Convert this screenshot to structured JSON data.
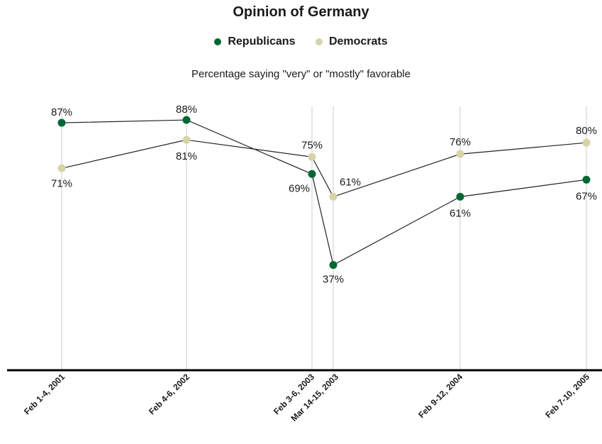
{
  "chart_data": {
    "type": "line",
    "title": "Opinion of Germany",
    "subtitle": "Percentage saying \"very\" or \"mostly\" favorable",
    "categories": [
      "Feb 1-4, 2001",
      "Feb 4-6, 2002",
      "Feb 3-6, 2003",
      "Mar 14-15, 2003",
      "Feb 9-12, 2004",
      "Feb 7-10, 2005"
    ],
    "series": [
      {
        "name": "Republicans",
        "color": "#006633",
        "values": [
          87,
          88,
          69,
          37,
          61,
          67
        ],
        "labels": [
          "87%",
          "88%",
          "69%",
          "37%",
          "61%",
          "67%"
        ]
      },
      {
        "name": "Democrats",
        "color": "#d6d3a6",
        "values": [
          71,
          81,
          75,
          61,
          76,
          80
        ],
        "labels": [
          "71%",
          "81%",
          "75%",
          "61%",
          "76%",
          "80%"
        ]
      }
    ],
    "ylim": [
      0,
      100
    ],
    "grid": "vertical lines at each survey date",
    "legend": "top-center"
  }
}
